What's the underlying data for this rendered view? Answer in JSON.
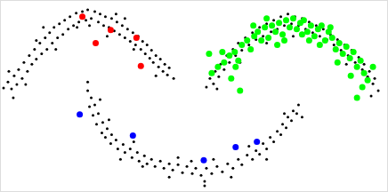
{
  "chart_data": {
    "type": "scatter",
    "xlim": [
      0,
      436
    ],
    "ylim": [
      216,
      0
    ],
    "grid": false,
    "tick_labels": false,
    "series": [
      {
        "color": "#000000",
        "marker": "small",
        "x": [
          3,
          8,
          12,
          15,
          18,
          20,
          24,
          26,
          30,
          32,
          35,
          38,
          40,
          44,
          46,
          50,
          52,
          55,
          58,
          60,
          64,
          66,
          70,
          72,
          76,
          78,
          82,
          85,
          88,
          92,
          96,
          98,
          102,
          106,
          110,
          112,
          116,
          118,
          122,
          125,
          128,
          131,
          134,
          137,
          140,
          143,
          146,
          149,
          152,
          155,
          158,
          160,
          163,
          165,
          168,
          170,
          172,
          175,
          178,
          180,
          183,
          185,
          188,
          190,
          14,
          9,
          48,
          62,
          100,
          86,
          130,
          150,
          175,
          195,
          120,
          140,
          28,
          40
        ],
        "y": [
          99,
          92,
          100,
          85,
          95,
          78,
          88,
          70,
          80,
          62,
          72,
          55,
          66,
          48,
          60,
          42,
          55,
          36,
          48,
          30,
          42,
          26,
          38,
          22,
          32,
          18,
          28,
          14,
          24,
          12,
          22,
          10,
          20,
          12,
          24,
          15,
          28,
          18,
          30,
          20,
          34,
          24,
          38,
          28,
          42,
          32,
          46,
          36,
          50,
          40,
          55,
          46,
          60,
          50,
          65,
          56,
          70,
          62,
          75,
          66,
          80,
          72,
          84,
          76,
          110,
          80,
          30,
          55,
          28,
          30,
          15,
          55,
          85,
          88,
          40,
          20,
          95,
          45
        ]
      },
      {
        "color": "#000000",
        "marker": "small",
        "x": [
          98,
          102,
          100,
          106,
          104,
          110,
          108,
          115,
          114,
          120,
          118,
          125,
          124,
          130,
          132,
          138,
          140,
          146,
          148,
          154,
          156,
          162,
          165,
          170,
          174,
          180,
          184,
          190,
          194,
          200,
          205,
          210,
          216,
          220,
          226,
          232,
          238,
          244,
          250,
          256,
          262,
          268,
          272,
          278,
          284,
          288,
          292,
          296,
          300,
          304,
          308,
          312,
          316,
          318,
          322,
          324,
          328,
          330,
          334,
          336,
          112,
          135,
          160,
          190,
          230,
          260,
          300,
          320,
          200,
          240,
          280,
          122,
          150,
          215,
          340,
          98,
          230
        ],
        "y": [
          102,
          110,
          120,
          118,
          130,
          128,
          140,
          138,
          150,
          145,
          155,
          152,
          162,
          158,
          168,
          163,
          172,
          168,
          178,
          172,
          182,
          176,
          185,
          180,
          188,
          182,
          190,
          185,
          192,
          186,
          195,
          188,
          196,
          190,
          198,
          190,
          196,
          188,
          194,
          185,
          190,
          180,
          186,
          175,
          180,
          170,
          174,
          162,
          168,
          155,
          160,
          148,
          152,
          140,
          144,
          132,
          136,
          125,
          128,
          118,
          112,
          180,
          188,
          200,
          205,
          200,
          180,
          128,
          178,
          180,
          165,
          135,
          160,
          182,
          132,
          92,
          210
        ]
      },
      {
        "color": "#000000",
        "marker": "small",
        "x": [
          232,
          236,
          240,
          242,
          246,
          248,
          252,
          255,
          258,
          262,
          265,
          268,
          272,
          276,
          280,
          284,
          288,
          292,
          296,
          300,
          305,
          308,
          312,
          316,
          320,
          324,
          328,
          332,
          336,
          340,
          344,
          348,
          352,
          356,
          360,
          364,
          368,
          372,
          376,
          380,
          384,
          388,
          392,
          396,
          400,
          404,
          408,
          410,
          414,
          416,
          420,
          422,
          426,
          300,
          330,
          270,
          390,
          244,
          418
        ],
        "y": [
          98,
          88,
          94,
          80,
          86,
          72,
          78,
          62,
          70,
          55,
          62,
          48,
          56,
          42,
          50,
          36,
          44,
          30,
          40,
          26,
          35,
          22,
          32,
          18,
          28,
          15,
          26,
          18,
          28,
          20,
          32,
          24,
          36,
          28,
          40,
          32,
          44,
          38,
          50,
          44,
          56,
          50,
          62,
          56,
          70,
          64,
          78,
          72,
          86,
          80,
          94,
          88,
          102,
          48,
          40,
          70,
          72,
          100,
          108
        ]
      },
      {
        "color": "#00ff00",
        "marker": "large",
        "x": [
          238,
          245,
          252,
          258,
          264,
          268,
          272,
          278,
          282,
          286,
          290,
          294,
          298,
          302,
          306,
          310,
          314,
          318,
          322,
          326,
          330,
          334,
          338,
          342,
          346,
          350,
          354,
          358,
          362,
          366,
          370,
          374,
          378,
          382,
          386,
          390,
          394,
          398,
          402,
          406,
          410,
          414,
          402,
          270,
          260,
          250,
          300,
          320,
          340,
          360,
          380,
          395,
          285,
          312,
          235,
          265,
          348,
          372,
          408,
          420
        ],
        "y": [
          82,
          75,
          70,
          62,
          58,
          68,
          50,
          45,
          55,
          40,
          35,
          45,
          30,
          42,
          28,
          35,
          25,
          38,
          22,
          30,
          20,
          32,
          25,
          22,
          35,
          28,
          40,
          32,
          28,
          45,
          35,
          42,
          55,
          48,
          60,
          52,
          65,
          58,
          75,
          68,
          82,
          90,
          110,
          102,
          88,
          58,
          20,
          45,
          38,
          50,
          70,
          85,
          28,
          50,
          60,
          75,
          45,
          30,
          98,
          75
        ]
      },
      {
        "color": "#ff0000",
        "marker": "large",
        "x": [
          92,
          124,
          107,
          153,
          158
        ],
        "y": [
          18,
          33,
          48,
          42,
          74
        ]
      },
      {
        "color": "#0000ff",
        "marker": "large",
        "x": [
          89,
          149,
          229,
          265,
          289
        ],
        "y": [
          129,
          153,
          181,
          166,
          160
        ]
      }
    ]
  }
}
